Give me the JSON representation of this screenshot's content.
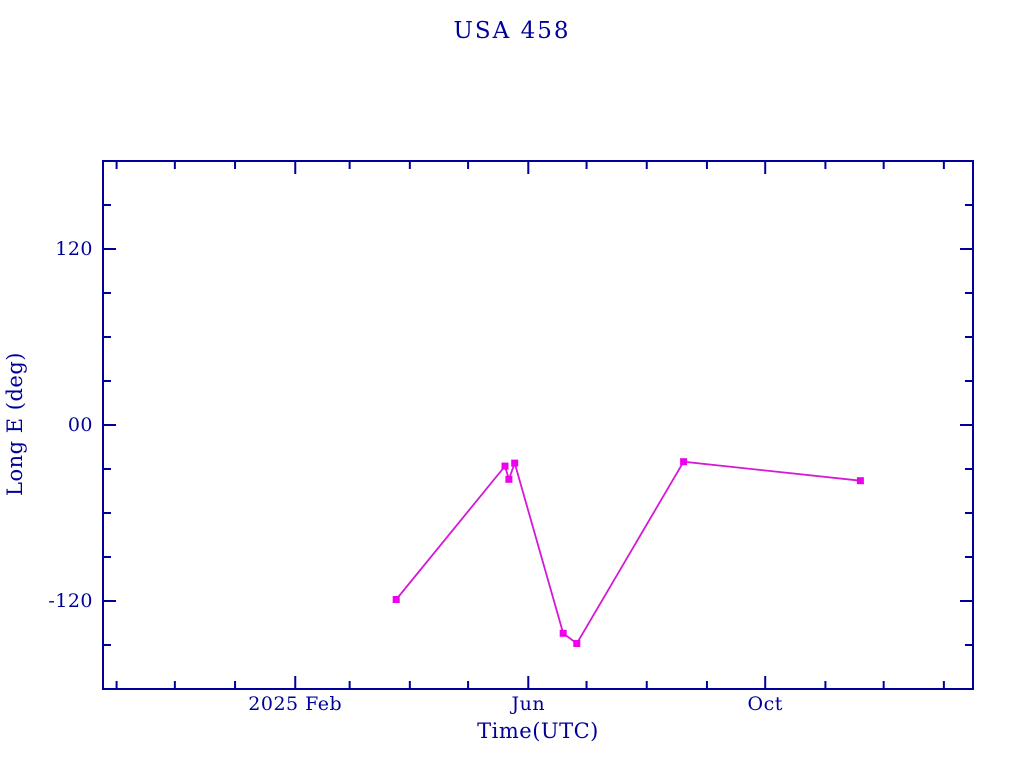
{
  "chart_data": {
    "type": "line",
    "title": "USA 458",
    "xlabel": "Time(UTC)",
    "ylabel": "Long E (deg)",
    "ylim": [
      -180,
      180
    ],
    "grid": false,
    "legend": "none",
    "x_range": [
      "2024-10-25",
      "2026-01-16"
    ],
    "y_major_ticks": [
      {
        "value": 120,
        "label": "120"
      },
      {
        "value": 0,
        "label": "00"
      },
      {
        "value": -120,
        "label": "-120"
      }
    ],
    "y_minor_ticks": [
      150,
      90,
      60,
      30,
      -30,
      -60,
      -90,
      -150
    ],
    "x_major_ticks": [
      {
        "date": "2025-02-01",
        "label": "2025 Feb"
      },
      {
        "date": "2025-06-01",
        "label": "Jun"
      },
      {
        "date": "2025-10-01",
        "label": "Oct"
      }
    ],
    "x_minor_ticks": [
      "2024-11-01",
      "2024-12-01",
      "2025-01-01",
      "2025-03-01",
      "2025-04-01",
      "2025-05-01",
      "2025-07-01",
      "2025-08-01",
      "2025-09-01",
      "2025-11-01",
      "2025-12-01",
      "2026-01-01"
    ],
    "marker": "filled-square",
    "points": [
      {
        "date": "2025-03-25",
        "value": -119
      },
      {
        "date": "2025-05-20",
        "value": -28
      },
      {
        "date": "2025-05-22",
        "value": -37
      },
      {
        "date": "2025-05-25",
        "value": -26
      },
      {
        "date": "2025-06-19",
        "value": -142
      },
      {
        "date": "2025-06-26",
        "value": -149
      },
      {
        "date": "2025-08-20",
        "value": -25
      },
      {
        "date": "2025-11-19",
        "value": -38
      }
    ],
    "colors": {
      "axis": "#000099",
      "text": "#000099",
      "line": "#d619d6",
      "marker": "#ee00ee",
      "background": "#ffffff"
    }
  }
}
